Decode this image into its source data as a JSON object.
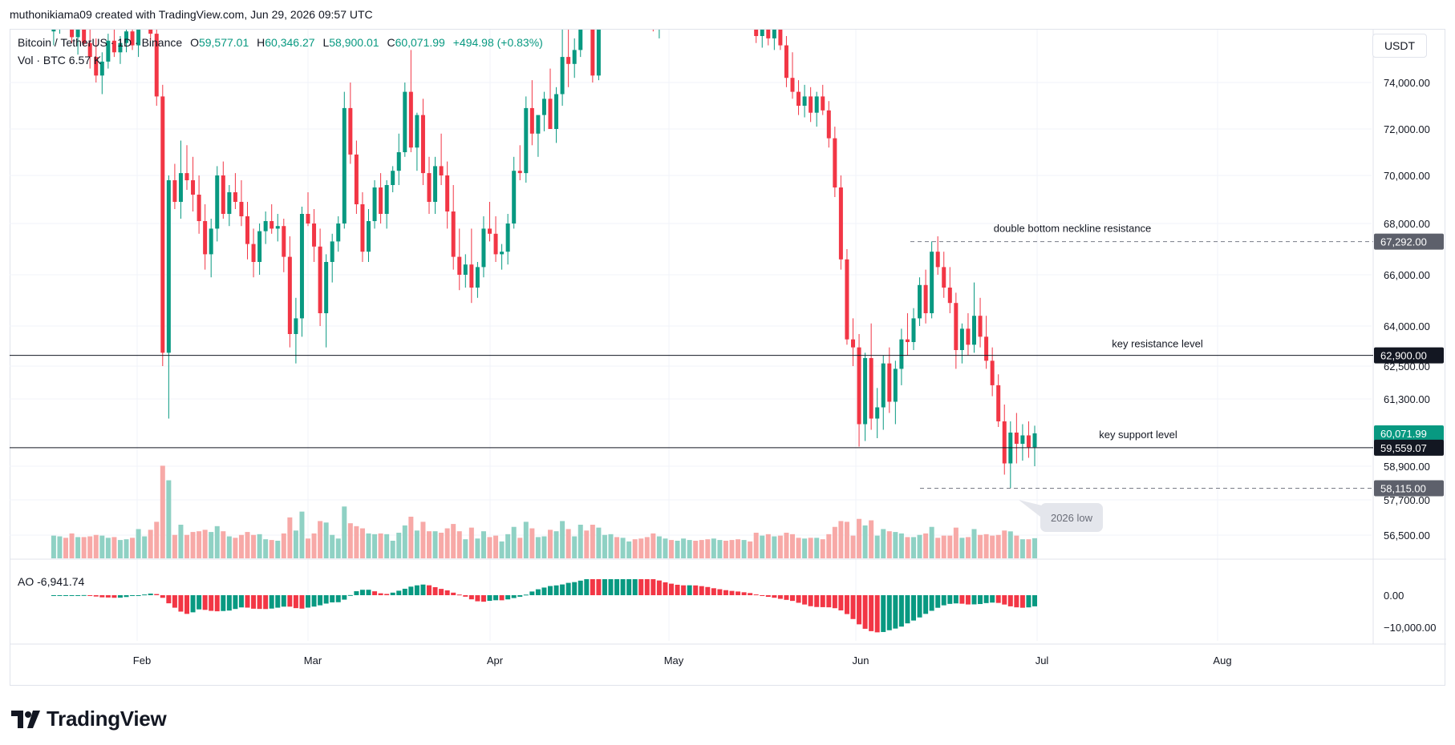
{
  "header": {
    "attribution": "muthonikiama09 created with TradingView.com, Jun 29, 2026 09:57 UTC"
  },
  "legend": {
    "symbol": "Bitcoin / TetherUS · 1D · Binance",
    "open_label": "O",
    "open": "59,577.01",
    "high_label": "H",
    "high": "60,346.27",
    "low_label": "L",
    "low": "58,900.01",
    "close_label": "C",
    "close": "60,071.99",
    "change": "+494.98 (+0.83%)",
    "volume_label": "Vol · BTC",
    "volume": "6.57 K",
    "ao_label": "AO",
    "ao_value": "-6,941.74"
  },
  "currency": "USDT",
  "brand": "TradingView",
  "colors": {
    "up": "#089981",
    "down": "#f23645",
    "up_vol": "#8fd1c4",
    "down_vol": "#f7a9a7",
    "ao_up": "#089981",
    "ao_down": "#f23645",
    "grid": "#f0f3fa"
  },
  "chart_data": {
    "type": "candlestick",
    "price_axis_ticks": [
      "74,000.00",
      "72,000.00",
      "70,000.00",
      "68,000.00",
      "66,000.00",
      "64,000.00",
      "62,500.00",
      "61,300.00",
      "58,900.00",
      "57,700.00",
      "56,500.00"
    ],
    "ao_axis_ticks": [
      "0.00",
      "−10,000.00"
    ],
    "time_axis_ticks": [
      "Feb",
      "Mar",
      "Apr",
      "May",
      "Jun",
      "Jul",
      "Aug"
    ],
    "price_labels": [
      {
        "value": "67,292.00",
        "style": "gray"
      },
      {
        "value": "62,900.00",
        "style": "black"
      },
      {
        "value": "60,071.99",
        "style": "green"
      },
      {
        "value": "59,559.07",
        "style": "black"
      },
      {
        "value": "58,115.00",
        "style": "gray"
      }
    ],
    "annotations": [
      {
        "text": "double bottom neckline resistance"
      },
      {
        "text": "key resistance level"
      },
      {
        "text": "key support level"
      },
      {
        "text": "2026 low"
      }
    ],
    "ohlc_note": "Daily BTC/USDT candles, approx. Jan 2026 – Jun 29 2026",
    "candles": [
      [
        76200,
        77400,
        75600,
        76700
      ],
      [
        76700,
        77800,
        76100,
        77300
      ],
      [
        77300,
        78300,
        76800,
        77100
      ],
      [
        77100,
        77800,
        75700,
        75950
      ],
      [
        75950,
        76800,
        75200,
        76400
      ],
      [
        76400,
        77200,
        75600,
        75700
      ],
      [
        75700,
        76300,
        74600,
        75100
      ],
      [
        75100,
        75900,
        74000,
        74300
      ],
      [
        74300,
        75300,
        73500,
        74900
      ],
      [
        74900,
        76100,
        74600,
        75800
      ],
      [
        75800,
        76700,
        75100,
        75300
      ],
      [
        75300,
        76000,
        74800,
        75700
      ],
      [
        75700,
        76600,
        75300,
        76200
      ],
      [
        76200,
        76900,
        75400,
        75600
      ],
      [
        75600,
        77800,
        75100,
        77500
      ],
      [
        77500,
        78600,
        76900,
        77900
      ],
      [
        77900,
        78400,
        75800,
        76100
      ],
      [
        76100,
        76700,
        73000,
        73400
      ],
      [
        73400,
        73900,
        62500,
        63000
      ],
      [
        63000,
        70000,
        60600,
        69800
      ],
      [
        69800,
        70500,
        68600,
        68900
      ],
      [
        68900,
        71500,
        68200,
        70100
      ],
      [
        70100,
        71300,
        69400,
        69800
      ],
      [
        69800,
        70800,
        68500,
        69200
      ],
      [
        69200,
        70000,
        67600,
        68100
      ],
      [
        68100,
        68800,
        66200,
        66800
      ],
      [
        66800,
        68200,
        65900,
        67800
      ],
      [
        67800,
        70400,
        67300,
        70000
      ],
      [
        70000,
        70600,
        68200,
        68400
      ],
      [
        68400,
        69600,
        67900,
        69300
      ],
      [
        69300,
        70100,
        68600,
        68900
      ],
      [
        68900,
        69800,
        67900,
        68300
      ],
      [
        68300,
        68900,
        66600,
        67200
      ],
      [
        67200,
        67800,
        65900,
        66500
      ],
      [
        66500,
        68000,
        66000,
        67700
      ],
      [
        67700,
        68500,
        67200,
        68100
      ],
      [
        68100,
        68800,
        67600,
        67800
      ],
      [
        67800,
        68400,
        67300,
        67900
      ],
      [
        67900,
        68200,
        66100,
        66700
      ],
      [
        66700,
        67500,
        63200,
        63700
      ],
      [
        63700,
        65100,
        62600,
        64300
      ],
      [
        64300,
        68700,
        63600,
        68400
      ],
      [
        68400,
        69300,
        67900,
        68000
      ],
      [
        68000,
        68600,
        66500,
        67100
      ],
      [
        67100,
        67800,
        64000,
        64500
      ],
      [
        64500,
        66800,
        63200,
        66500
      ],
      [
        66500,
        67600,
        65700,
        67300
      ],
      [
        67300,
        68300,
        66900,
        68000
      ],
      [
        68000,
        73600,
        67800,
        72900
      ],
      [
        72900,
        74000,
        70500,
        70900
      ],
      [
        70900,
        71500,
        68400,
        68800
      ],
      [
        68800,
        69300,
        66500,
        66900
      ],
      [
        66900,
        68600,
        66500,
        68100
      ],
      [
        68100,
        69800,
        67800,
        69500
      ],
      [
        69500,
        70100,
        68000,
        68400
      ],
      [
        68400,
        69800,
        67800,
        69600
      ],
      [
        69600,
        70400,
        69300,
        70200
      ],
      [
        70200,
        71800,
        69600,
        71000
      ],
      [
        71000,
        74000,
        70800,
        73600
      ],
      [
        73600,
        75400,
        71000,
        71200
      ],
      [
        71200,
        72700,
        70200,
        72600
      ],
      [
        72600,
        73300,
        69600,
        70100
      ],
      [
        70100,
        70800,
        68400,
        68900
      ],
      [
        68900,
        70800,
        68400,
        70400
      ],
      [
        70400,
        71800,
        69600,
        70000
      ],
      [
        70000,
        70600,
        67800,
        68500
      ],
      [
        68500,
        69600,
        66200,
        66700
      ],
      [
        66700,
        67800,
        65400,
        66000
      ],
      [
        66000,
        66800,
        65500,
        66400
      ],
      [
        66400,
        67800,
        64900,
        65500
      ],
      [
        65500,
        66500,
        65100,
        66300
      ],
      [
        66300,
        68300,
        65900,
        67800
      ],
      [
        67800,
        68900,
        67300,
        67600
      ],
      [
        67600,
        68300,
        66500,
        66800
      ],
      [
        66800,
        67200,
        66200,
        66900
      ],
      [
        66900,
        68400,
        66400,
        68000
      ],
      [
        68000,
        70800,
        67800,
        70200
      ],
      [
        70200,
        71300,
        69800,
        70100
      ],
      [
        70100,
        73400,
        69700,
        72900
      ],
      [
        72900,
        74100,
        71300,
        71800
      ],
      [
        71800,
        72400,
        70800,
        72600
      ],
      [
        72600,
        73600,
        71900,
        73300
      ],
      [
        73300,
        74600,
        72000,
        72000
      ],
      [
        72000,
        73800,
        71400,
        73500
      ],
      [
        73500,
        76800,
        73000,
        75100
      ],
      [
        75100,
        76500,
        73800,
        74800
      ],
      [
        74800,
        75900,
        74200,
        75400
      ],
      [
        75400,
        78400,
        75100,
        77800
      ],
      [
        77800,
        78800,
        76300,
        76600
      ],
      [
        76600,
        77300,
        74000,
        74300
      ],
      [
        74300,
        77000,
        74100,
        76600
      ],
      [
        76600,
        78200,
        76300,
        77700
      ],
      [
        77700,
        79200,
        77200,
        78500
      ],
      [
        78500,
        79600,
        78000,
        78200
      ],
      [
        78200,
        79100,
        77600,
        78800
      ],
      [
        78800,
        79400,
        78400,
        78900
      ],
      [
        78900,
        79300,
        78000,
        78500
      ],
      [
        78500,
        79000,
        77600,
        77900
      ],
      [
        77900,
        78500,
        76900,
        77400
      ],
      [
        77400,
        78300,
        76200,
        76800
      ],
      [
        76800,
        77600,
        75900,
        77300
      ],
      [
        77300,
        78100,
        76700,
        77800
      ],
      [
        77800,
        78500,
        77300,
        77600
      ],
      [
        77600,
        78200,
        77100,
        77900
      ],
      [
        77900,
        78900,
        77500,
        78400
      ],
      [
        78400,
        79100,
        77900,
        78700
      ],
      [
        78700,
        79300,
        78200,
        78600
      ],
      [
        78600,
        79000,
        77800,
        78100
      ],
      [
        78100,
        78600,
        77300,
        77700
      ],
      [
        77700,
        78500,
        77100,
        78200
      ],
      [
        78200,
        78900,
        77700,
        78500
      ],
      [
        78500,
        79000,
        77900,
        78300
      ],
      [
        78300,
        78800,
        77600,
        77900
      ],
      [
        77900,
        78400,
        77100,
        77500
      ],
      [
        77500,
        78100,
        76900,
        77800
      ],
      [
        77800,
        78300,
        77300,
        77400
      ],
      [
        77400,
        77900,
        75700,
        76000
      ],
      [
        76000,
        77300,
        75500,
        77100
      ],
      [
        77100,
        77600,
        75600,
        75900
      ],
      [
        75900,
        77100,
        75400,
        76800
      ],
      [
        76800,
        77200,
        75400,
        75600
      ],
      [
        75600,
        76000,
        73800,
        74200
      ],
      [
        74200,
        75300,
        73300,
        73600
      ],
      [
        73600,
        74100,
        72600,
        73000
      ],
      [
        73000,
        73900,
        72500,
        73400
      ],
      [
        73400,
        73800,
        72300,
        72700
      ],
      [
        72700,
        73600,
        72100,
        73400
      ],
      [
        73400,
        73900,
        72600,
        72800
      ],
      [
        72800,
        73200,
        71200,
        71600
      ],
      [
        71600,
        72100,
        69100,
        69500
      ],
      [
        69500,
        70000,
        66200,
        66600
      ],
      [
        66600,
        67000,
        63300,
        63500
      ],
      [
        63500,
        64300,
        62500,
        63200
      ],
      [
        63200,
        63700,
        59600,
        60400
      ],
      [
        60400,
        63000,
        59800,
        62800
      ],
      [
        62800,
        64100,
        60200,
        60600
      ],
      [
        60600,
        61700,
        59900,
        61000
      ],
      [
        61000,
        62900,
        60200,
        62600
      ],
      [
        62600,
        63200,
        60800,
        61200
      ],
      [
        61200,
        62700,
        60400,
        62400
      ],
      [
        62400,
        63900,
        61800,
        63500
      ],
      [
        63500,
        64500,
        62900,
        63400
      ],
      [
        63400,
        64700,
        63100,
        64300
      ],
      [
        64300,
        65900,
        64000,
        65600
      ],
      [
        65600,
        66200,
        64100,
        64500
      ],
      [
        64500,
        67300,
        64300,
        66900
      ],
      [
        66900,
        67500,
        66000,
        66300
      ],
      [
        66300,
        66900,
        65100,
        65500
      ],
      [
        65500,
        66300,
        64500,
        64900
      ],
      [
        64900,
        65300,
        62400,
        63100
      ],
      [
        63100,
        64100,
        62600,
        63900
      ],
      [
        63900,
        64500,
        62900,
        63300
      ],
      [
        63300,
        65700,
        63000,
        64400
      ],
      [
        64400,
        65100,
        63200,
        63600
      ],
      [
        63600,
        64400,
        62400,
        62700
      ],
      [
        62700,
        63200,
        61400,
        61800
      ],
      [
        61800,
        62200,
        60300,
        60500
      ],
      [
        60500,
        61100,
        58600,
        59000
      ],
      [
        59000,
        60500,
        58115,
        60100
      ],
      [
        60100,
        60800,
        59000,
        59700
      ],
      [
        59700,
        60400,
        59100,
        60000
      ],
      [
        60000,
        60500,
        59200,
        59577
      ],
      [
        59577,
        60346,
        58900,
        60072
      ]
    ]
  }
}
